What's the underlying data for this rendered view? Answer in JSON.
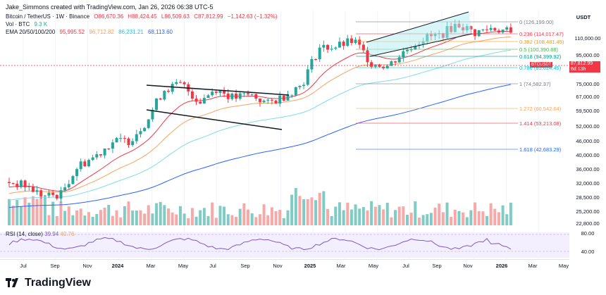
{
  "header": {
    "credit": "Jake_Simmons created with TradingView.com, Jan 26, 2026 06:38 UTC-5"
  },
  "legend": {
    "symbol": "Bitcoin / TetherUS · 1W · Binance",
    "open": "O86,670.36",
    "high": "H88,424.45",
    "low": "L86,509.63",
    "close": "C87,812.99",
    "change": "−1,142.63 (−1.32%)",
    "vol_label": "Vol · BTC",
    "vol_value": "9.3 K",
    "ema_label": "EMA 20/50/100/200",
    "ema_values": [
      "95,995.52",
      "96,712.82",
      "86,231.21",
      "68,113.60"
    ]
  },
  "rsi": {
    "label": "RSI (14, close)",
    "values": [
      "39.94",
      "40.76"
    ]
  },
  "price_axis": {
    "unit": "USDT",
    "labels": [
      "110,000.00",
      "95,000.00",
      "75,000.00",
      "67,000.00",
      "59,500.00",
      "52,000.00",
      "46,000.00",
      "40,000.00",
      "36,000.00",
      "32,000.00",
      "28,500.00",
      "25,200.00",
      "22,800.00",
      "80.00",
      "40.00"
    ],
    "current_symbol": "BTCUSDT",
    "current_price": "87,812.99",
    "countdown": "6d 13h"
  },
  "time_axis": {
    "labels": [
      "Jul",
      "Sep",
      "Nov",
      "2024",
      "Mar",
      "May",
      "Jul",
      "Sep",
      "Nov",
      "2025",
      "Mar",
      "May",
      "Jul",
      "Sep",
      "Nov",
      "2026",
      "Mar",
      "May"
    ]
  },
  "fib": [
    {
      "label": "0 (126,199.00)",
      "color": "#787b86"
    },
    {
      "label": "0.236 (114,017.47)",
      "color": "#f23645"
    },
    {
      "label": "0.382 (108,481.45)",
      "color": "#ff9800"
    },
    {
      "label": "0.5 (100,390.68)",
      "color": "#4caf50"
    },
    {
      "label": "0.618 (94,399.92)",
      "color": "#089981"
    },
    {
      "label": "0.786 (85,624.45)",
      "color": "#00bcd4"
    },
    {
      "label": "1 (74,582.37)",
      "color": "#787b86"
    },
    {
      "label": "1.272 (60,542.64)",
      "color": "#f7a35c"
    },
    {
      "label": "1.414 (53,213.08)",
      "color": "#f23645"
    },
    {
      "label": "1.618 (42,683.29)",
      "color": "#2962ff"
    }
  ],
  "brand": "TradingView",
  "chart_data": {
    "type": "line",
    "title": "Bitcoin / TetherUS · 1W · Binance",
    "xlabel": "",
    "ylabel": "USDT",
    "x": [
      "Jul 2023",
      "Sep 2023",
      "Nov 2023",
      "Jan 2024",
      "Mar 2024",
      "May 2024",
      "Jul 2024",
      "Sep 2024",
      "Nov 2024",
      "Jan 2025",
      "Mar 2025",
      "May 2025",
      "Jul 2025",
      "Sep 2025",
      "Nov 2025",
      "Jan 2026"
    ],
    "series": [
      {
        "name": "BTCUSDT close",
        "values": [
          30000,
          27000,
          36000,
          44000,
          69000,
          63000,
          64000,
          60000,
          90000,
          100000,
          84000,
          104000,
          118000,
          114000,
          91000,
          87813
        ]
      },
      {
        "name": "EMA 20",
        "values": [
          29000,
          28000,
          31000,
          40000,
          56000,
          63000,
          63000,
          60000,
          72000,
          95000,
          93000,
          96000,
          108000,
          112000,
          103000,
          95996
        ]
      },
      {
        "name": "EMA 200",
        "values": [
          23000,
          24000,
          25000,
          27000,
          30000,
          34000,
          38000,
          41000,
          45000,
          50000,
          55000,
          59000,
          63000,
          66000,
          67500,
          68114
        ]
      }
    ],
    "ylim": [
      20000,
      130000
    ],
    "colors": {
      "up": "#26a69a",
      "down": "#f23645",
      "ema20": "#f23645",
      "ema50": "#f7a35c",
      "ema100": "#7fdcea",
      "ema200": "#2962ff",
      "rsi": "#7e57c2"
    }
  }
}
